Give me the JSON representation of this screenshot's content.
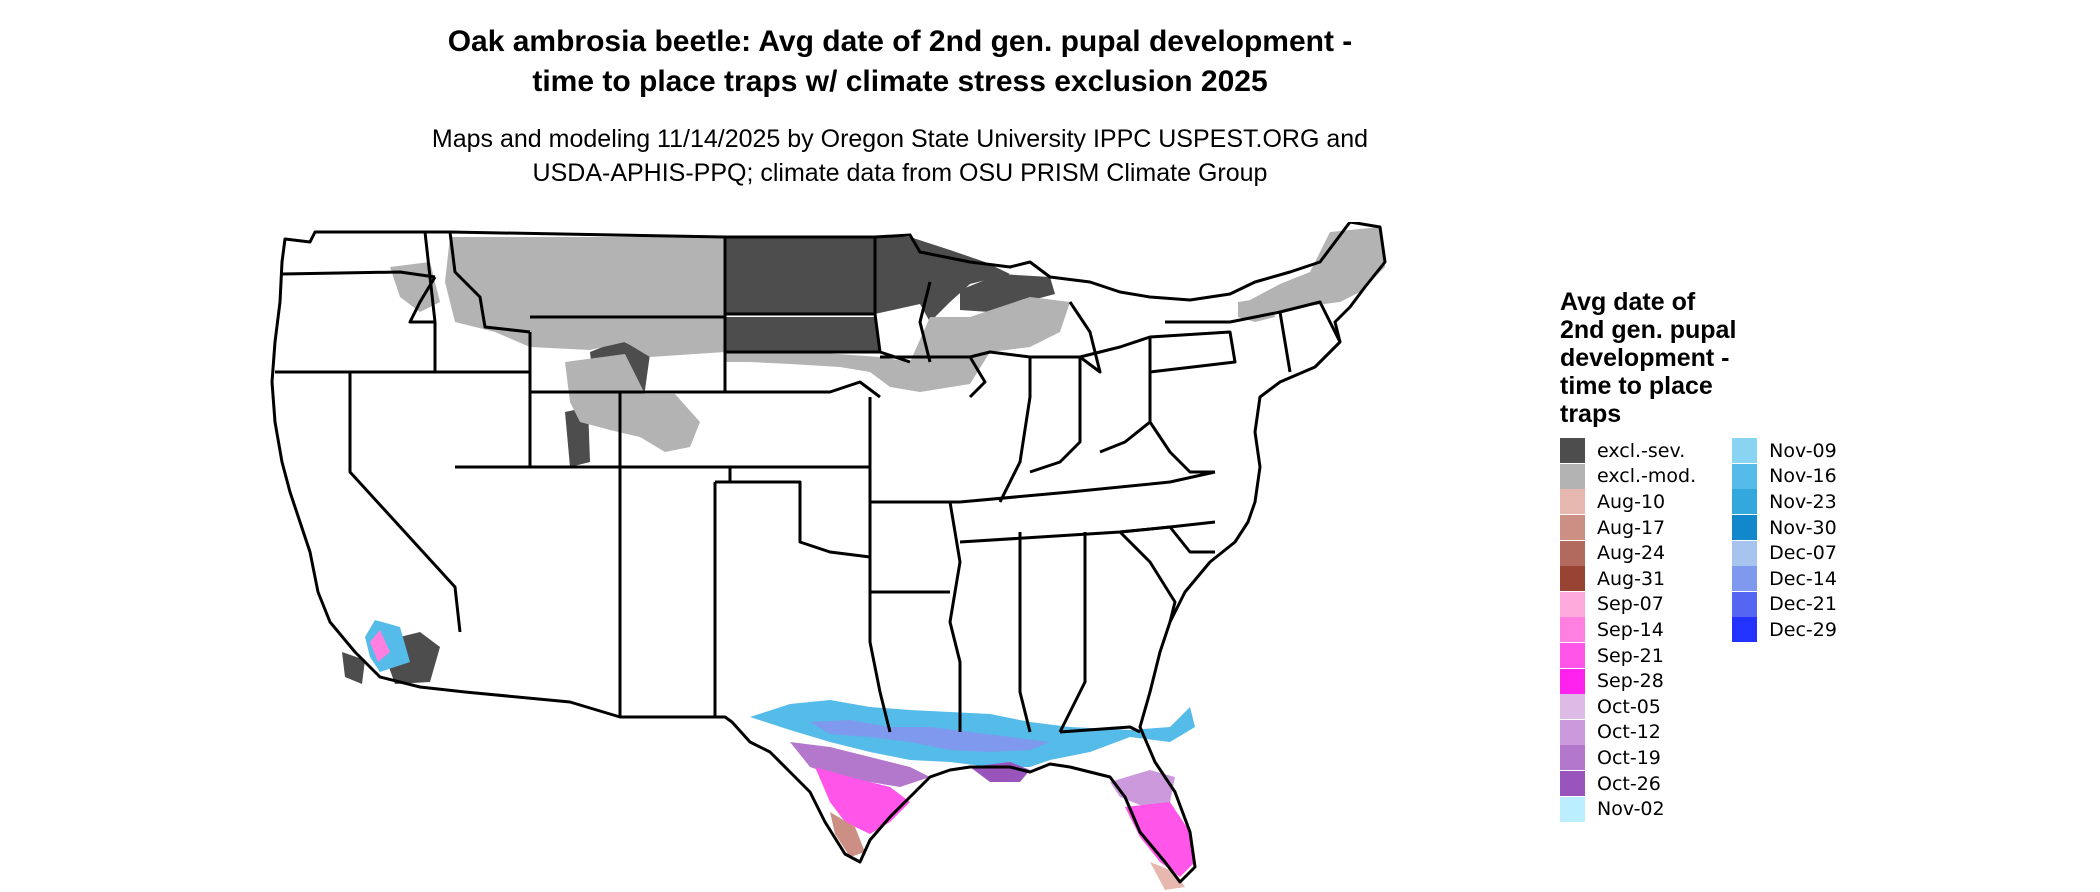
{
  "title": {
    "line1": "Oak ambrosia beetle: Avg date of 2nd gen. pupal development -",
    "line2": "time to place traps w/ climate stress exclusion 2025"
  },
  "subtitle": {
    "line1": "Maps and modeling 11/14/2025 by Oregon State University IPPC USPEST.ORG and",
    "line2": "USDA-APHIS-PPQ; climate data from OSU PRISM Climate Group"
  },
  "legend": {
    "title_lines": [
      "Avg date of",
      "2nd gen. pupal",
      "development -",
      "time to place",
      "traps"
    ],
    "col1": [
      {
        "label": "excl.-sev.",
        "color": "#4d4d4d"
      },
      {
        "label": "excl.-mod.",
        "color": "#b3b3b3"
      },
      {
        "label": "Aug-10",
        "color": "#e6b8af"
      },
      {
        "label": "Aug-17",
        "color": "#cc8f84"
      },
      {
        "label": "Aug-24",
        "color": "#b36a5e"
      },
      {
        "label": "Aug-31",
        "color": "#994433"
      },
      {
        "label": "Sep-07",
        "color": "#ffaadd"
      },
      {
        "label": "Sep-14",
        "color": "#ff80e0"
      },
      {
        "label": "Sep-21",
        "color": "#ff55e8"
      },
      {
        "label": "Sep-28",
        "color": "#ff22ee"
      },
      {
        "label": "Oct-05",
        "color": "#ddbbe6"
      },
      {
        "label": "Oct-12",
        "color": "#cc99dd"
      },
      {
        "label": "Oct-19",
        "color": "#b377cc"
      },
      {
        "label": "Oct-26",
        "color": "#9955bb"
      },
      {
        "label": "Nov-02",
        "color": "#bbeeff"
      }
    ],
    "col2": [
      {
        "label": "Nov-09",
        "color": "#88d4f2"
      },
      {
        "label": "Nov-16",
        "color": "#55bbe8"
      },
      {
        "label": "Nov-23",
        "color": "#33a8dd"
      },
      {
        "label": "Nov-30",
        "color": "#1188cc"
      },
      {
        "label": "Dec-07",
        "color": "#a6c4ee"
      },
      {
        "label": "Dec-14",
        "color": "#7f99ee"
      },
      {
        "label": "Dec-21",
        "color": "#5566f2"
      },
      {
        "label": "Dec-29",
        "color": "#2233ff"
      }
    ]
  }
}
